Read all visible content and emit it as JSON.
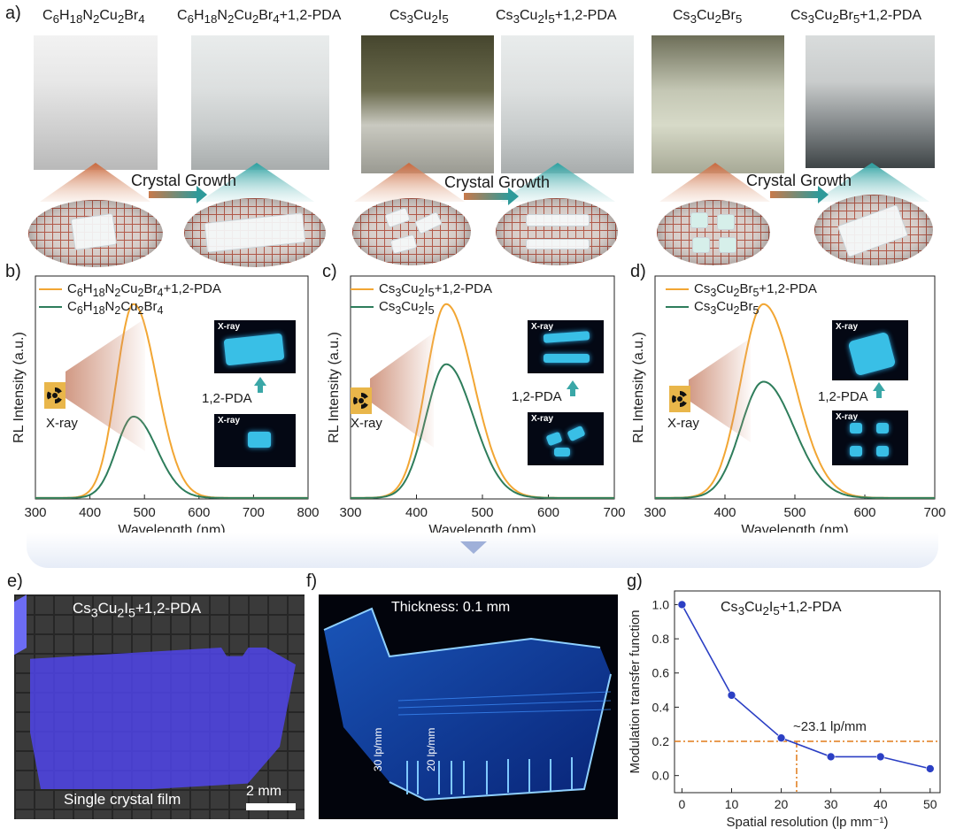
{
  "panel_letters": [
    "a)",
    "b)",
    "c)",
    "d)",
    "e)",
    "f)",
    "g)"
  ],
  "panel_a": {
    "titles": [
      {
        "base": "C",
        "parts": [
          [
            "C",
            ""
          ],
          [
            "6",
            "sub"
          ],
          [
            "H",
            ""
          ],
          [
            "18",
            "sub"
          ],
          [
            "N",
            ""
          ],
          [
            "2",
            "sub"
          ],
          [
            "Cu",
            ""
          ],
          [
            "2",
            "sub"
          ],
          [
            "Br",
            ""
          ],
          [
            "4",
            "sub"
          ]
        ],
        "text": "C6H18N2Cu2Br4"
      },
      {
        "text": "C6H18N2Cu2Br4+1,2-PDA"
      },
      {
        "text": "Cs3Cu2I5"
      },
      {
        "text": "Cs3Cu2I5+1,2-PDA"
      },
      {
        "text": "Cs3Cu2Br5"
      },
      {
        "text": "Cs3Cu2Br5+1,2-PDA"
      }
    ],
    "crystal_growth_label": "Crystal Growth"
  },
  "spectra_common": {
    "x_label": "Wavelength (nm)",
    "y_label": "RL Intensity (a.u.)",
    "xray_label": "X-ray",
    "pda_label": "1,2-PDA",
    "inset_tag": "X-ray",
    "color_with_pda": "#f2a633",
    "color_without": "#2e7d5b"
  },
  "chart_data": [
    {
      "panel": "b",
      "type": "line",
      "xlabel": "Wavelength (nm)",
      "ylabel": "RL Intensity (a.u.)",
      "xlim": [
        300,
        800
      ],
      "ylim": [
        0,
        1.15
      ],
      "x_ticks": [
        300,
        400,
        500,
        600,
        700,
        800
      ],
      "series": [
        {
          "name": "C6H18N2Cu2Br4+1,2-PDA",
          "peak": 480,
          "sigma": 37,
          "amplitude": 1.0
        },
        {
          "name": "C6H18N2Cu2Br4",
          "peak": 480,
          "sigma": 37,
          "amplitude": 0.42
        }
      ]
    },
    {
      "panel": "c",
      "type": "line",
      "xlabel": "Wavelength (nm)",
      "ylabel": "RL Intensity (a.u.)",
      "xlim": [
        300,
        700
      ],
      "ylim": [
        0,
        1.15
      ],
      "x_ticks": [
        300,
        400,
        500,
        600,
        700
      ],
      "series": [
        {
          "name": "Cs3Cu2I5+1,2-PDA",
          "peak": 445,
          "sigma": 36,
          "amplitude": 1.0
        },
        {
          "name": "Cs3Cu2I5",
          "peak": 445,
          "sigma": 36,
          "amplitude": 0.69
        }
      ]
    },
    {
      "panel": "d",
      "type": "line",
      "xlabel": "Wavelength (nm)",
      "ylabel": "RL Intensity (a.u.)",
      "xlim": [
        300,
        700
      ],
      "ylim": [
        0,
        1.15
      ],
      "x_ticks": [
        300,
        400,
        500,
        600,
        700
      ],
      "series": [
        {
          "name": "Cs3Cu2Br5+1,2-PDA",
          "peak": 455,
          "sigma": 38,
          "amplitude": 1.0
        },
        {
          "name": "Cs3Cu2Br5",
          "peak": 455,
          "sigma": 38,
          "amplitude": 0.6
        }
      ]
    },
    {
      "panel": "g",
      "type": "line",
      "title": "Cs3Cu2I5+1,2-PDA",
      "xlabel": "Spatial resolution (lp mm⁻¹)",
      "ylabel": "Modulation transfer function",
      "xlim": [
        -1.5,
        52
      ],
      "ylim": [
        -0.1,
        1.08
      ],
      "x_ticks": [
        0,
        10,
        20,
        30,
        40,
        50
      ],
      "y_ticks": [
        0.0,
        0.2,
        0.4,
        0.6,
        0.8,
        1.0
      ],
      "series": [
        {
          "name": "MTF",
          "x": [
            0,
            10,
            20,
            30,
            40,
            50
          ],
          "y": [
            1.0,
            0.47,
            0.22,
            0.11,
            0.11,
            0.04
          ],
          "color": "#2b3fc4"
        }
      ],
      "reference_line_y": 0.2,
      "reference_line_x": 23.1,
      "annotation": "~23.1 lp/mm",
      "reference_color": "#e07b1a"
    }
  ],
  "panel_e": {
    "label": "Cs3Cu2I5+1,2-PDA",
    "caption": "Single crystal film",
    "scale": "2 mm"
  },
  "panel_f": {
    "thickness": "Thickness: 0.1 mm",
    "mark_30": "30 lp/mm",
    "mark_20": "20 lp/mm"
  }
}
